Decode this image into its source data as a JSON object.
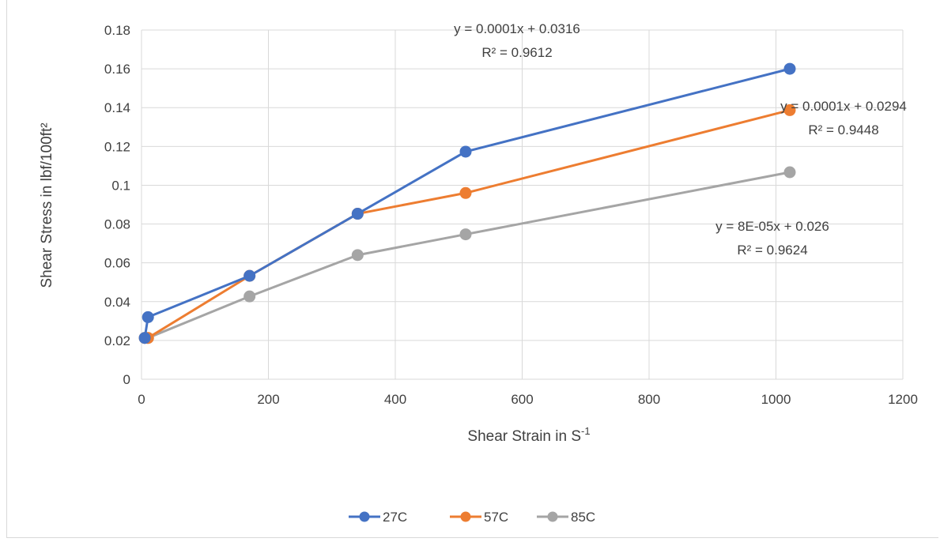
{
  "chart_data": {
    "type": "scatter",
    "title": "",
    "xlabel": {
      "main": "Shear Strain in S",
      "sup": "-1"
    },
    "ylabel": "Shear Stress in lbf/100ft²",
    "xlim": [
      0,
      1200
    ],
    "ylim": [
      0,
      0.18
    ],
    "x_ticks": [
      0,
      200,
      400,
      600,
      800,
      1000,
      1200
    ],
    "y_ticks": [
      "0",
      "0.02",
      "0.04",
      "0.06",
      "0.08",
      "0.1",
      "0.12",
      "0.14",
      "0.16",
      "0.18"
    ],
    "grid": true,
    "legend_position": "bottom",
    "series": [
      {
        "name": "27C",
        "color": "#4472c4",
        "points": [
          [
            5.11,
            0.0213
          ],
          [
            10.22,
            0.032
          ],
          [
            170.3,
            0.0533
          ],
          [
            340.6,
            0.0853
          ],
          [
            510.9,
            0.1173
          ],
          [
            1021.8,
            0.16
          ]
        ],
        "trendline": {
          "equation": "y = 0.0001x + 0.0316",
          "r2": "R² = 0.9612"
        }
      },
      {
        "name": "57C",
        "color": "#ed7d31",
        "points": [
          [
            5.11,
            0.0213
          ],
          [
            10.22,
            0.0213
          ],
          [
            170.3,
            0.0533
          ],
          [
            340.6,
            0.0853
          ],
          [
            510.9,
            0.096
          ],
          [
            1021.8,
            0.1387
          ]
        ],
        "trendline": {
          "equation": "y = 0.0001x + 0.0294",
          "r2": "R² = 0.9448"
        }
      },
      {
        "name": "85C",
        "color": "#a5a5a5",
        "points": [
          [
            5.11,
            0.0213
          ],
          [
            10.22,
            0.0213
          ],
          [
            170.3,
            0.0427
          ],
          [
            340.6,
            0.064
          ],
          [
            510.9,
            0.0747
          ],
          [
            1021.8,
            0.1067
          ]
        ],
        "trendline": {
          "equation": "y = 8E-05x + 0.026",
          "r2": "R² = 0.9624"
        }
      }
    ]
  }
}
